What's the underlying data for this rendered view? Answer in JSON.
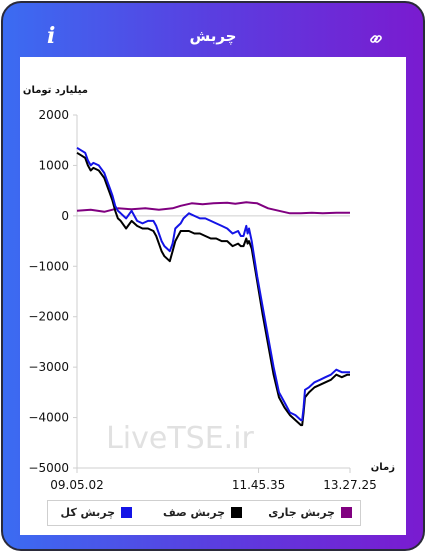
{
  "header": {
    "title": "چربش",
    "info_icon": "info-icon",
    "link_icon": "link-icon"
  },
  "colors": {
    "total": "#1414e6",
    "queue": "#000000",
    "current": "#800080"
  },
  "watermark": "LiveTSE.ir",
  "chart_data": {
    "type": "line",
    "title": "",
    "ylabel": "میلیارد تومان",
    "xlabel": "زمان",
    "ylim": [
      -5000,
      2000
    ],
    "yticks": [
      -5000,
      -4000,
      -3000,
      -2000,
      -1000,
      0,
      1000,
      2000
    ],
    "xlim": [
      0,
      100
    ],
    "xticks": [
      {
        "at": 0,
        "label": "09.05.02"
      },
      {
        "at": 66.5,
        "label": "11.45.35"
      },
      {
        "at": 100,
        "label": "13.27.25"
      }
    ],
    "grid": false,
    "legend_position": "bottom",
    "series": [
      {
        "name": "چربش کل",
        "color": "#1414e6",
        "points": [
          [
            0,
            1350
          ],
          [
            1.5,
            1300
          ],
          [
            3,
            1250
          ],
          [
            4,
            1100
          ],
          [
            5,
            1000
          ],
          [
            6,
            1050
          ],
          [
            8,
            1000
          ],
          [
            10,
            850
          ],
          [
            11,
            700
          ],
          [
            12,
            550
          ],
          [
            13,
            400
          ],
          [
            14,
            200
          ],
          [
            15,
            100
          ],
          [
            16,
            50
          ],
          [
            18,
            -50
          ],
          [
            20,
            100
          ],
          [
            22,
            -100
          ],
          [
            24,
            -150
          ],
          [
            26,
            -100
          ],
          [
            28,
            -100
          ],
          [
            29,
            -200
          ],
          [
            30,
            -350
          ],
          [
            31,
            -500
          ],
          [
            32,
            -600
          ],
          [
            33,
            -650
          ],
          [
            34,
            -700
          ],
          [
            35,
            -550
          ],
          [
            36,
            -250
          ],
          [
            37,
            -200
          ],
          [
            38,
            -150
          ],
          [
            39,
            -50
          ],
          [
            41,
            50
          ],
          [
            43,
            0
          ],
          [
            45,
            -50
          ],
          [
            47,
            -50
          ],
          [
            49,
            -100
          ],
          [
            51,
            -150
          ],
          [
            53,
            -200
          ],
          [
            55,
            -250
          ],
          [
            57,
            -350
          ],
          [
            59,
            -300
          ],
          [
            60,
            -400
          ],
          [
            61,
            -400
          ],
          [
            62,
            -200
          ],
          [
            62.5,
            -350
          ],
          [
            63,
            -250
          ],
          [
            64,
            -500
          ],
          [
            66,
            -1200
          ],
          [
            68,
            -1800
          ],
          [
            70,
            -2400
          ],
          [
            72,
            -3000
          ],
          [
            74,
            -3500
          ],
          [
            76,
            -3700
          ],
          [
            78,
            -3900
          ],
          [
            80,
            -3950
          ],
          [
            82,
            -4050
          ],
          [
            82.5,
            -4050
          ],
          [
            83,
            -3800
          ],
          [
            83.5,
            -3450
          ],
          [
            85,
            -3400
          ],
          [
            87,
            -3300
          ],
          [
            89,
            -3250
          ],
          [
            91,
            -3200
          ],
          [
            93,
            -3150
          ],
          [
            95,
            -3050
          ],
          [
            97,
            -3100
          ],
          [
            99,
            -3100
          ],
          [
            100,
            -3100
          ]
        ]
      },
      {
        "name": "چربش صف",
        "color": "#000000",
        "points": [
          [
            0,
            1250
          ],
          [
            1.5,
            1200
          ],
          [
            3,
            1150
          ],
          [
            4,
            1000
          ],
          [
            5,
            900
          ],
          [
            6,
            950
          ],
          [
            8,
            900
          ],
          [
            10,
            750
          ],
          [
            11,
            600
          ],
          [
            12,
            450
          ],
          [
            13,
            300
          ],
          [
            14,
            100
          ],
          [
            15,
            -50
          ],
          [
            16,
            -100
          ],
          [
            18,
            -250
          ],
          [
            20,
            -100
          ],
          [
            22,
            -200
          ],
          [
            24,
            -250
          ],
          [
            26,
            -250
          ],
          [
            28,
            -300
          ],
          [
            29,
            -400
          ],
          [
            30,
            -550
          ],
          [
            31,
            -700
          ],
          [
            32,
            -800
          ],
          [
            33,
            -850
          ],
          [
            34,
            -900
          ],
          [
            35,
            -700
          ],
          [
            36,
            -500
          ],
          [
            37,
            -400
          ],
          [
            38,
            -300
          ],
          [
            39,
            -300
          ],
          [
            41,
            -300
          ],
          [
            43,
            -350
          ],
          [
            45,
            -350
          ],
          [
            47,
            -400
          ],
          [
            49,
            -450
          ],
          [
            51,
            -450
          ],
          [
            53,
            -500
          ],
          [
            55,
            -500
          ],
          [
            57,
            -600
          ],
          [
            59,
            -550
          ],
          [
            60,
            -600
          ],
          [
            61,
            -600
          ],
          [
            62,
            -450
          ],
          [
            62.5,
            -550
          ],
          [
            63,
            -500
          ],
          [
            64,
            -650
          ],
          [
            66,
            -1300
          ],
          [
            68,
            -1950
          ],
          [
            70,
            -2550
          ],
          [
            72,
            -3150
          ],
          [
            74,
            -3600
          ],
          [
            76,
            -3800
          ],
          [
            78,
            -3950
          ],
          [
            80,
            -4050
          ],
          [
            82,
            -4150
          ],
          [
            82.5,
            -4150
          ],
          [
            83,
            -3900
          ],
          [
            83.5,
            -3600
          ],
          [
            85,
            -3500
          ],
          [
            87,
            -3400
          ],
          [
            89,
            -3350
          ],
          [
            91,
            -3300
          ],
          [
            93,
            -3250
          ],
          [
            95,
            -3150
          ],
          [
            97,
            -3200
          ],
          [
            99,
            -3150
          ],
          [
            100,
            -3150
          ]
        ]
      },
      {
        "name": "چربش جاری",
        "color": "#800080",
        "points": [
          [
            0,
            100
          ],
          [
            5,
            120
          ],
          [
            10,
            80
          ],
          [
            15,
            150
          ],
          [
            20,
            130
          ],
          [
            25,
            150
          ],
          [
            30,
            120
          ],
          [
            35,
            150
          ],
          [
            38,
            200
          ],
          [
            42,
            250
          ],
          [
            46,
            230
          ],
          [
            50,
            250
          ],
          [
            55,
            260
          ],
          [
            58,
            240
          ],
          [
            62,
            270
          ],
          [
            66,
            250
          ],
          [
            68,
            200
          ],
          [
            70,
            150
          ],
          [
            74,
            100
          ],
          [
            78,
            50
          ],
          [
            82,
            50
          ],
          [
            86,
            60
          ],
          [
            90,
            50
          ],
          [
            95,
            60
          ],
          [
            100,
            60
          ]
        ]
      }
    ]
  }
}
